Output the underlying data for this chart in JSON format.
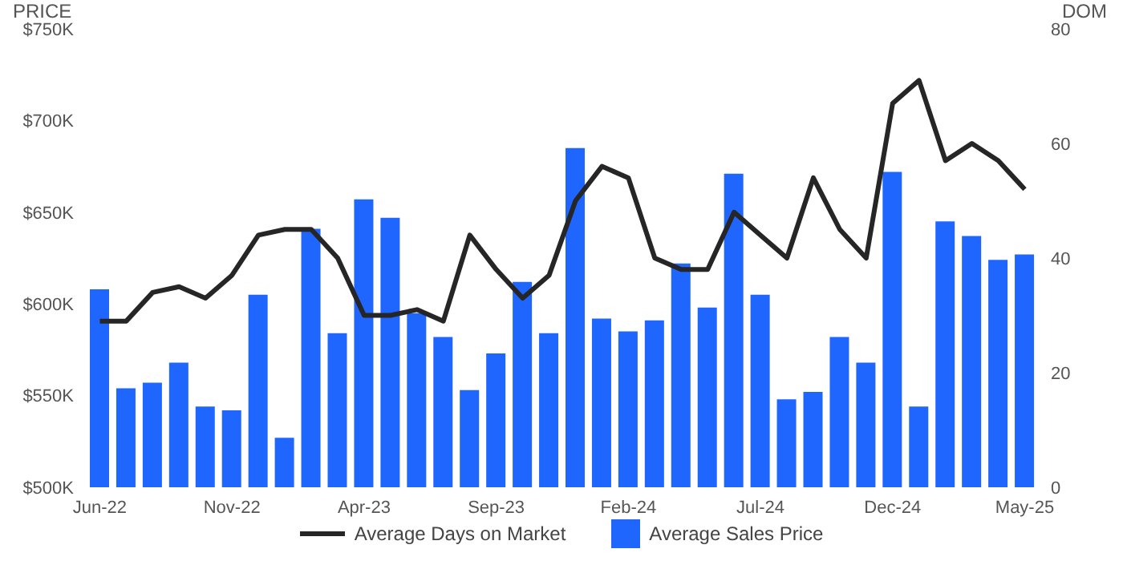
{
  "chart_data": {
    "type": "bar",
    "ylabel": "PRICE",
    "y2label": "DOM",
    "categories": [
      "Jun-22",
      null,
      null,
      null,
      null,
      "Nov-22",
      null,
      null,
      null,
      null,
      "Apr-23",
      null,
      null,
      null,
      null,
      "Sep-23",
      null,
      null,
      null,
      null,
      "Feb-24",
      null,
      null,
      null,
      null,
      "Jul-24",
      null,
      null,
      null,
      null,
      "Dec-24",
      null,
      null,
      null,
      null,
      "May-25"
    ],
    "series": [
      {
        "name": "Average Days on Market",
        "type": "line",
        "axis": "y2",
        "color": "#262626",
        "values": [
          29,
          29,
          34,
          35,
          33,
          37,
          44,
          45,
          45,
          40,
          30,
          30,
          31,
          29,
          44,
          38,
          33,
          37,
          50,
          56,
          54,
          40,
          38,
          38,
          48,
          44,
          40,
          54,
          45,
          40,
          67,
          71,
          57,
          60,
          57,
          52
        ]
      },
      {
        "name": "Average Sales Price",
        "color": "#1f66ff",
        "values": [
          608000,
          554000,
          557000,
          568000,
          544000,
          542000,
          605000,
          527000,
          641000,
          584000,
          657000,
          647000,
          595000,
          582000,
          553000,
          573000,
          612000,
          584000,
          685000,
          592000,
          585000,
          591000,
          622000,
          598000,
          671000,
          605000,
          548000,
          552000,
          582000,
          568000,
          672000,
          544000,
          645000,
          637000,
          624000,
          627000
        ]
      }
    ],
    "ylim": [
      500000,
      750000
    ],
    "yticks": [
      {
        "value": 500000,
        "label": "$500K"
      },
      {
        "value": 550000,
        "label": "$550K"
      },
      {
        "value": 600000,
        "label": "$600K"
      },
      {
        "value": 650000,
        "label": "$650K"
      },
      {
        "value": 700000,
        "label": "$700K"
      },
      {
        "value": 750000,
        "label": "$750K"
      }
    ],
    "y2lim": [
      0,
      80
    ],
    "y2ticks": [
      0,
      20,
      40,
      60,
      80
    ],
    "grid": false,
    "legend": "bottom",
    "line_style": "solid",
    "marker": "none"
  }
}
